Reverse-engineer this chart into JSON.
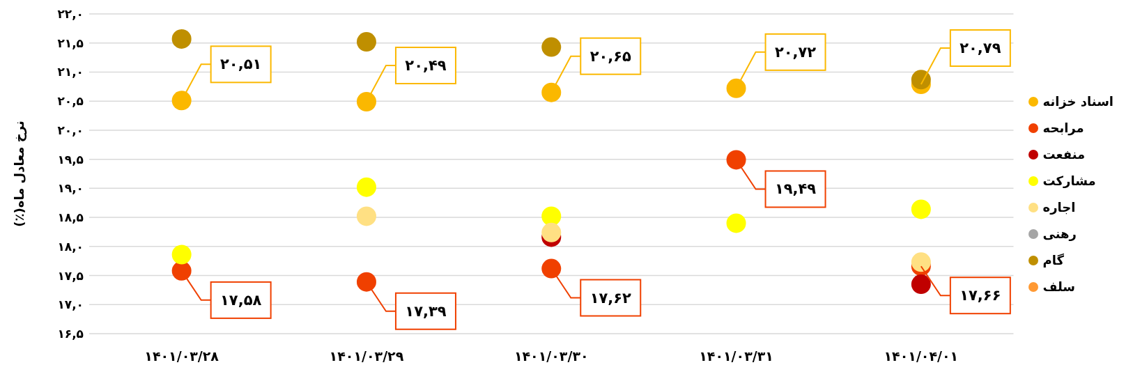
{
  "chart_data": {
    "type": "scatter",
    "ylabel": "نرخ معادل ماه(٪)",
    "categories": [
      "۱۴۰۱/۰۳/۲۸",
      "۱۴۰۱/۰۳/۲۹",
      "۱۴۰۱/۰۳/۳۰",
      "۱۴۰۱/۰۳/۳۱",
      "۱۴۰۱/۰۴/۰۱"
    ],
    "series": [
      {
        "name": "اسناد خزانه",
        "color": "#fbb800",
        "values": [
          20.51,
          20.49,
          20.65,
          20.72,
          20.79
        ],
        "value_labels": [
          "۲۰,۵۱",
          "۲۰,۴۹",
          "۲۰,۶۵",
          "۲۰,۷۲",
          "۲۰,۷۹"
        ]
      },
      {
        "name": "مرابحه",
        "color": "#f04000",
        "values": [
          17.58,
          17.39,
          17.62,
          19.49,
          17.66
        ],
        "value_labels": [
          "۱۷,۵۸",
          "۱۷,۳۹",
          "۱۷,۶۲",
          "۱۹,۴۹",
          "۱۷,۶۶"
        ]
      },
      {
        "name": "منفعت",
        "color": "#c00000",
        "values": [
          null,
          null,
          18.16,
          null,
          17.35
        ]
      },
      {
        "name": "مشارکت",
        "color": "#ffff00",
        "values": [
          17.86,
          19.02,
          18.52,
          18.4,
          18.64
        ]
      },
      {
        "name": "اجاره",
        "color": "#ffe083",
        "values": [
          null,
          18.52,
          18.24,
          null,
          17.73
        ]
      },
      {
        "name": "رهنی",
        "color": "#a5a5a5",
        "values": [
          null,
          null,
          null,
          null,
          null
        ]
      },
      {
        "name": "گام",
        "color": "#bf8f00",
        "values": [
          21.57,
          21.52,
          21.43,
          null,
          20.87
        ]
      },
      {
        "name": "سلف",
        "color": "#ff9933",
        "values": [
          null,
          null,
          null,
          null,
          null
        ]
      }
    ],
    "ylim": [
      16.5,
      22
    ],
    "yticks": [
      {
        "value": 16.5,
        "label": "۱۶,۵"
      },
      {
        "value": 17,
        "label": "۱۷,۰"
      },
      {
        "value": 17.5,
        "label": "۱۷,۵"
      },
      {
        "value": 18,
        "label": "۱۸,۰"
      },
      {
        "value": 18.5,
        "label": "۱۸,۵"
      },
      {
        "value": 19,
        "label": "۱۹,۰"
      },
      {
        "value": 19.5,
        "label": "۱۹,۵"
      },
      {
        "value": 20,
        "label": "۲۰,۰"
      },
      {
        "value": 20.5,
        "label": "۲۰,۵"
      },
      {
        "value": 21,
        "label": "۲۱,۰"
      },
      {
        "value": 21.5,
        "label": "۲۱,۵"
      },
      {
        "value": 22,
        "label": "۲۲,۰"
      }
    ],
    "grid": "y",
    "legend": "right",
    "marker": "circle"
  }
}
